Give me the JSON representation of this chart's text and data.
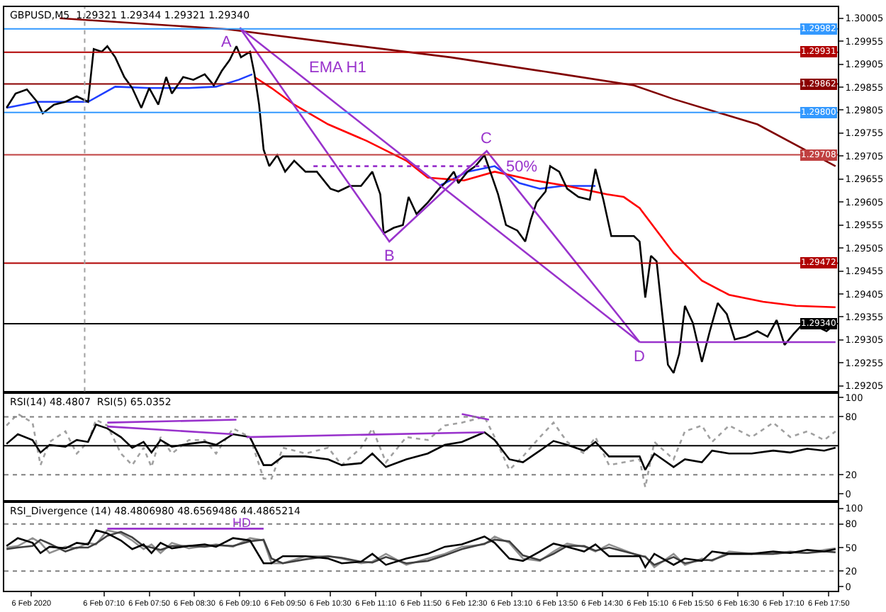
{
  "chart_data": [
    {
      "type": "line",
      "title": "GBPUSD,M5  1.29321 1.29344 1.29321 1.29340",
      "xlim": [
        "2020-02-06T05:42",
        "2020-02-06T17:58"
      ],
      "ylim": [
        1.29193,
        1.30029
      ],
      "tick_labels": "y",
      "marker": "none",
      "yticks": [
        1.30005,
        1.29955,
        1.29905,
        1.29855,
        1.29805,
        1.29755,
        1.29705,
        1.29655,
        1.29605,
        1.29555,
        1.29505,
        1.29455,
        1.29405,
        1.29355,
        1.29305,
        1.29255,
        1.29205
      ],
      "series": [
        {
          "color": "#800000",
          "x": [
            "2020-02-06T06:31",
            "2020-02-06T08:59",
            "2020-02-06T10:37",
            "2020-02-06T12:16",
            "2020-02-06T13:55",
            "2020-02-06T14:58",
            "2020-02-06T15:33",
            "2020-02-06T16:47",
            "2020-02-06T17:56"
          ],
          "values": [
            1.30005,
            1.29981,
            1.2995,
            1.2992,
            1.29883,
            1.29859,
            1.29829,
            1.29774,
            1.29683
          ]
        },
        {
          "color": "#1f3fff",
          "x": [
            "2020-02-06T05:44",
            "2020-02-06T06:11",
            "2020-02-06T06:56",
            "2020-02-06T07:20",
            "2020-02-06T07:50",
            "2020-02-06T08:25",
            "2020-02-06T08:49",
            "2020-02-06T09:09",
            "2020-02-06T09:21",
            "2020-02-06T09:48",
            "2020-02-06T12:06",
            "2020-02-06T12:31",
            "2020-02-06T12:55",
            "2020-02-06T13:17",
            "2020-02-06T13:35",
            "2020-02-06T13:55",
            "2020-02-06T14:24"
          ],
          "values": [
            1.2981,
            1.29823,
            1.29823,
            1.29856,
            1.29853,
            1.29853,
            1.29856,
            1.29871,
            1.29883,
            null,
            1.2964,
            1.29671,
            1.29683,
            1.29646,
            1.29634,
            1.2964,
            1.2964
          ]
        },
        {
          "color": "#ff0000",
          "x": [
            "2020-02-06T09:23",
            "2020-02-06T09:38",
            "2020-02-06T09:58",
            "2020-02-06T10:28",
            "2020-02-06T11:02",
            "2020-02-06T11:37",
            "2020-02-06T11:56",
            "2020-02-06T12:28",
            "2020-02-06T12:55",
            "2020-02-06T13:30",
            "2020-02-06T13:59",
            "2020-02-06T14:34",
            "2020-02-06T14:49",
            "2020-02-06T15:03",
            "2020-02-06T15:33",
            "2020-02-06T15:58",
            "2020-02-06T16:22",
            "2020-02-06T16:52",
            "2020-02-06T17:21",
            "2020-02-06T17:56"
          ],
          "values": [
            1.29877,
            1.29853,
            1.29817,
            1.29774,
            1.29738,
            1.29695,
            1.29658,
            1.29652,
            1.29671,
            1.29652,
            1.2964,
            1.29622,
            1.29616,
            1.29592,
            1.29494,
            1.29434,
            1.29403,
            1.29388,
            1.29379,
            1.29376
          ]
        },
        {
          "color": "#000000",
          "x": [
            "2020-02-06T05:44",
            "2020-02-06T05:52",
            "2020-02-06T06:02",
            "2020-02-06T06:11",
            "2020-02-06T06:16",
            "2020-02-06T06:26",
            "2020-02-06T06:36",
            "2020-02-06T06:46",
            "2020-02-06T06:56",
            "2020-02-06T07:01",
            "2020-02-06T07:08",
            "2020-02-06T07:13",
            "2020-02-06T07:20",
            "2020-02-06T07:28",
            "2020-02-06T07:35",
            "2020-02-06T07:43",
            "2020-02-06T07:50",
            "2020-02-06T07:58",
            "2020-02-06T08:05",
            "2020-02-06T08:10",
            "2020-02-06T08:20",
            "2020-02-06T08:29",
            "2020-02-06T08:39",
            "2020-02-06T08:47",
            "2020-02-06T08:54",
            "2020-02-06T09:01",
            "2020-02-06T09:07",
            "2020-02-06T09:11",
            "2020-02-06T09:19",
            "2020-02-06T09:23",
            "2020-02-06T09:27",
            "2020-02-06T09:31",
            "2020-02-06T09:36",
            "2020-02-06T09:43",
            "2020-02-06T09:50",
            "2020-02-06T09:58",
            "2020-02-06T10:08",
            "2020-02-06T10:18",
            "2020-02-06T10:30",
            "2020-02-06T10:37",
            "2020-02-06T10:47",
            "2020-02-06T10:57",
            "2020-02-06T11:07",
            "2020-02-06T11:14",
            "2020-02-06T11:17",
            "2020-02-06T11:26",
            "2020-02-06T11:34",
            "2020-02-06T11:39",
            "2020-02-06T11:46",
            "2020-02-06T11:56",
            "2020-02-06T12:06",
            "2020-02-06T12:11",
            "2020-02-06T12:19",
            "2020-02-06T12:23",
            "2020-02-06T12:31",
            "2020-02-06T12:38",
            "2020-02-06T12:46",
            "2020-02-06T12:53",
            "2020-02-06T12:58",
            "2020-02-06T13:05",
            "2020-02-06T13:15",
            "2020-02-06T13:22",
            "2020-02-06T13:27",
            "2020-02-06T13:32",
            "2020-02-06T13:40",
            "2020-02-06T13:44",
            "2020-02-06T13:52",
            "2020-02-06T13:59",
            "2020-02-06T14:09",
            "2020-02-06T14:19",
            "2020-02-06T14:24",
            "2020-02-06T14:31",
            "2020-02-06T14:38",
            "2020-02-06T14:49",
            "2020-02-06T14:58",
            "2020-02-06T15:03",
            "2020-02-06T15:08",
            "2020-02-06T15:13",
            "2020-02-06T15:18",
            "2020-02-06T15:23",
            "2020-02-06T15:28",
            "2020-02-06T15:33",
            "2020-02-06T15:38",
            "2020-02-06T15:43",
            "2020-02-06T15:50",
            "2020-02-06T15:58",
            "2020-02-06T16:05",
            "2020-02-06T16:12",
            "2020-02-06T16:20",
            "2020-02-06T16:27",
            "2020-02-06T16:37",
            "2020-02-06T16:47",
            "2020-02-06T16:56",
            "2020-02-06T17:04",
            "2020-02-06T17:11",
            "2020-02-06T17:19",
            "2020-02-06T17:28",
            "2020-02-06T17:38",
            "2020-02-06T17:48",
            "2020-02-06T17:56"
          ],
          "values": [
            1.2981,
            1.29841,
            1.2985,
            1.29823,
            1.29798,
            1.29817,
            1.29823,
            1.29835,
            1.29823,
            1.29938,
            1.29932,
            1.29944,
            1.2992,
            1.29877,
            1.29853,
            1.2981,
            1.29853,
            1.29817,
            1.29877,
            1.29841,
            1.29877,
            1.29871,
            1.29883,
            1.29859,
            1.2989,
            1.29914,
            1.29944,
            1.2992,
            1.29932,
            1.29883,
            1.29817,
            1.29719,
            1.29683,
            1.29707,
            1.29671,
            1.29695,
            1.29671,
            1.29671,
            1.29634,
            1.29628,
            1.2964,
            1.2964,
            1.29671,
            1.29622,
            1.29537,
            1.29549,
            1.29555,
            1.29616,
            1.29579,
            1.29604,
            1.29634,
            1.29646,
            1.29671,
            1.29646,
            1.29671,
            1.29683,
            1.29707,
            1.29658,
            1.29622,
            1.29555,
            1.29543,
            1.29519,
            1.29567,
            1.29604,
            1.29628,
            1.29683,
            1.29671,
            1.29634,
            1.29616,
            1.2961,
            1.29677,
            1.2961,
            1.29531,
            1.29531,
            1.29531,
            1.29519,
            1.29397,
            1.29488,
            1.29476,
            1.29361,
            1.29251,
            1.29233,
            1.29275,
            1.29379,
            1.29342,
            1.29257,
            1.29324,
            1.29385,
            1.29361,
            1.29306,
            1.29312,
            1.29324,
            1.29312,
            1.29348,
            1.29294,
            1.29318,
            1.29342,
            1.29336,
            1.29324,
            1.2934
          ]
        },
        {
          "color": "#9933cc",
          "x": [
            "2020-02-06T09:10",
            "2020-02-06T11:22",
            "2020-02-06T12:48",
            "2020-02-06T15:03"
          ],
          "values": [
            1.29984,
            1.29519,
            1.29716,
            1.293
          ]
        },
        {
          "color": "#9933cc",
          "x": [
            "2020-02-06T09:10",
            "2020-02-06T15:03"
          ],
          "values": [
            1.29984,
            1.293
          ]
        },
        {
          "color": "#9933cc",
          "x": [
            "2020-02-06T15:03",
            "2020-02-06T17:56"
          ],
          "values": [
            1.293,
            1.293
          ]
        },
        {
          "color": "#9933cc",
          "line_style": "dotted",
          "x": [
            "2020-02-06T10:15",
            "2020-02-06T12:48"
          ],
          "values": [
            1.29683,
            1.29683
          ]
        }
      ],
      "ref_lines": [
        {
          "axis": "y",
          "value": 1.29982,
          "label": "1.29982",
          "color": "#3399ff"
        },
        {
          "axis": "y",
          "value": 1.29931,
          "label": "1.29931",
          "color": "#b00000"
        },
        {
          "axis": "y",
          "value": 1.29862,
          "label": "1.29862",
          "color": "#8b0000"
        },
        {
          "axis": "y",
          "value": 1.298,
          "label": "1.29800",
          "color": "#3399ff"
        },
        {
          "axis": "y",
          "value": 1.29708,
          "label": "1.29708",
          "color": "#c04040"
        },
        {
          "axis": "y",
          "value": 1.29472,
          "label": "1.29472",
          "color": "#b00000"
        },
        {
          "axis": "y",
          "value": 1.2934,
          "label": "1.29340",
          "color": "#000000"
        },
        {
          "axis": "x",
          "value": "2020-02-06T06:53",
          "label": null,
          "color": "#a0a0a0",
          "line_style": "dotted"
        }
      ],
      "annotations": [
        {
          "text": "A",
          "x": "2020-02-06T09:10",
          "y": 1.29984
        },
        {
          "text": "B",
          "x": "2020-02-06T11:22",
          "y": 1.29519
        },
        {
          "text": "C",
          "x": "2020-02-06T12:48",
          "y": 1.29716
        },
        {
          "text": "D",
          "x": "2020-02-06T15:03",
          "y": 1.293
        },
        "EMA H1",
        "50%"
      ]
    },
    {
      "type": "line",
      "title": "RSI(14) 48.4807  RSI(5) 65.0352",
      "xlim": [
        "2020-02-06T05:42",
        "2020-02-06T17:58"
      ],
      "ylim": [
        -6,
        104
      ],
      "yticks": [
        100,
        80,
        20,
        0
      ],
      "tick_labels": "y",
      "marker": "none",
      "x": [
        "2020-02-06T05:44",
        "2020-02-06T05:54",
        "2020-02-06T06:07",
        "2020-02-06T06:14",
        "2020-02-06T06:22",
        "2020-02-06T06:36",
        "2020-02-06T06:46",
        "2020-02-06T06:56",
        "2020-02-06T07:03",
        "2020-02-06T07:13",
        "2020-02-06T07:25",
        "2020-02-06T07:35",
        "2020-02-06T07:45",
        "2020-02-06T07:52",
        "2020-02-06T08:00",
        "2020-02-06T08:10",
        "2020-02-06T08:25",
        "2020-02-06T08:39",
        "2020-02-06T08:49",
        "2020-02-06T09:04",
        "2020-02-06T09:19",
        "2020-02-06T09:31",
        "2020-02-06T09:38",
        "2020-02-06T09:48",
        "2020-02-06T10:08",
        "2020-02-06T10:28",
        "2020-02-06T10:40",
        "2020-02-06T10:57",
        "2020-02-06T11:07",
        "2020-02-06T11:19",
        "2020-02-06T11:37",
        "2020-02-06T11:56",
        "2020-02-06T12:11",
        "2020-02-06T12:26",
        "2020-02-06T12:46",
        "2020-02-06T12:55",
        "2020-02-06T13:08",
        "2020-02-06T13:20",
        "2020-02-06T13:35",
        "2020-02-06T13:47",
        "2020-02-06T13:59",
        "2020-02-06T14:14",
        "2020-02-06T14:24",
        "2020-02-06T14:36",
        "2020-02-06T15:03",
        "2020-02-06T15:08",
        "2020-02-06T15:16",
        "2020-02-06T15:33",
        "2020-02-06T15:43",
        "2020-02-06T15:58",
        "2020-02-06T16:07",
        "2020-02-06T16:22",
        "2020-02-06T16:42",
        "2020-02-06T17:01",
        "2020-02-06T17:16",
        "2020-02-06T17:31",
        "2020-02-06T17:46",
        "2020-02-06T17:56"
      ],
      "series": [
        {
          "color": "#a0a0a0",
          "line_style": "dotted",
          "values": [
            71,
            83,
            74,
            30,
            54,
            65,
            42,
            54,
            77,
            71,
            42,
            30,
            48,
            28,
            59,
            42,
            56,
            56,
            42,
            68,
            59,
            16,
            16,
            48,
            42,
            48,
            30,
            48,
            68,
            33,
            59,
            56,
            71,
            74,
            80,
            59,
            25,
            39,
            59,
            74,
            54,
            42,
            59,
            30,
            36,
            7,
            54,
            36,
            65,
            71,
            54,
            71,
            59,
            74,
            59,
            65,
            56,
            65
          ]
        },
        {
          "color": "#000000",
          "values": [
            52,
            62,
            56,
            43,
            51,
            49,
            56,
            54,
            72,
            68,
            59,
            48,
            54,
            43,
            56,
            49,
            52,
            54,
            51,
            62,
            59,
            30,
            30,
            39,
            39,
            36,
            30,
            32,
            42,
            28,
            36,
            42,
            51,
            54,
            64,
            56,
            36,
            33,
            45,
            55,
            51,
            45,
            54,
            39,
            39,
            25,
            42,
            28,
            36,
            33,
            45,
            42,
            42,
            45,
            43,
            47,
            45,
            48
          ]
        },
        {
          "color": "#9933cc",
          "x": [
            "2020-02-06T07:13",
            "2020-02-06T09:07"
          ],
          "values": [
            74,
            77
          ]
        },
        {
          "color": "#9933cc",
          "x": [
            "2020-02-06T07:13",
            "2020-02-06T09:04"
          ],
          "values": [
            70,
            62
          ]
        },
        {
          "color": "#9933cc",
          "x": [
            "2020-02-06T09:16",
            "2020-02-06T12:46"
          ],
          "values": [
            59,
            64
          ]
        },
        {
          "color": "#9933cc",
          "x": [
            "2020-02-06T12:26",
            "2020-02-06T12:50"
          ],
          "values": [
            83,
            77
          ]
        }
      ],
      "ref_lines": [
        {
          "axis": "y",
          "value": 80,
          "label": null,
          "color": "#808080",
          "line_style": "dotted"
        },
        {
          "axis": "y",
          "value": 50,
          "label": null,
          "color": "#000000"
        },
        {
          "axis": "y",
          "value": 20,
          "label": null,
          "color": "#808080",
          "line_style": "dotted"
        }
      ]
    },
    {
      "type": "line",
      "title": "RSI_Divergence (14) 48.4806980 48.6569486 44.4865214",
      "xlim": [
        "2020-02-06T05:42",
        "2020-02-06T17:58"
      ],
      "ylim": [
        -5,
        107
      ],
      "yticks": [
        100,
        80,
        50,
        20,
        0
      ],
      "marker": "none",
      "xticks": [
        {
          "value": "2020-02-06T06:06",
          "label": "6 Feb 2020"
        },
        {
          "value": "2020-02-06T07:10",
          "label": "6 Feb 07:10"
        },
        {
          "value": "2020-02-06T07:50",
          "label": "6 Feb 07:50"
        },
        {
          "value": "2020-02-06T08:30",
          "label": "6 Feb 08:30"
        },
        {
          "value": "2020-02-06T09:10",
          "label": "6 Feb 09:10"
        },
        {
          "value": "2020-02-06T09:50",
          "label": "6 Feb 09:50"
        },
        {
          "value": "2020-02-06T10:30",
          "label": "6 Feb 10:30"
        },
        {
          "value": "2020-02-06T11:10",
          "label": "6 Feb 11:10"
        },
        {
          "value": "2020-02-06T11:50",
          "label": "6 Feb 11:50"
        },
        {
          "value": "2020-02-06T12:30",
          "label": "6 Feb 12:30"
        },
        {
          "value": "2020-02-06T13:10",
          "label": "6 Feb 13:10"
        },
        {
          "value": "2020-02-06T13:50",
          "label": "6 Feb 13:50"
        },
        {
          "value": "2020-02-06T14:30",
          "label": "6 Feb 14:30"
        },
        {
          "value": "2020-02-06T15:10",
          "label": "6 Feb 15:10"
        },
        {
          "value": "2020-02-06T15:50",
          "label": "6 Feb 15:50"
        },
        {
          "value": "2020-02-06T16:30",
          "label": "6 Feb 16:30"
        },
        {
          "value": "2020-02-06T17:10",
          "label": "6 Feb 17:10"
        },
        {
          "value": "2020-02-06T17:50",
          "label": "6 Feb 17:50"
        }
      ],
      "x": [
        "2020-02-06T05:44",
        "2020-02-06T05:54",
        "2020-02-06T06:07",
        "2020-02-06T06:14",
        "2020-02-06T06:22",
        "2020-02-06T06:36",
        "2020-02-06T06:46",
        "2020-02-06T06:56",
        "2020-02-06T07:03",
        "2020-02-06T07:13",
        "2020-02-06T07:25",
        "2020-02-06T07:35",
        "2020-02-06T07:45",
        "2020-02-06T07:52",
        "2020-02-06T08:00",
        "2020-02-06T08:10",
        "2020-02-06T08:25",
        "2020-02-06T08:39",
        "2020-02-06T08:49",
        "2020-02-06T09:04",
        "2020-02-06T09:19",
        "2020-02-06T09:31",
        "2020-02-06T09:38",
        "2020-02-06T09:48",
        "2020-02-06T10:08",
        "2020-02-06T10:28",
        "2020-02-06T10:40",
        "2020-02-06T10:57",
        "2020-02-06T11:07",
        "2020-02-06T11:19",
        "2020-02-06T11:37",
        "2020-02-06T11:56",
        "2020-02-06T12:11",
        "2020-02-06T12:26",
        "2020-02-06T12:46",
        "2020-02-06T12:55",
        "2020-02-06T13:08",
        "2020-02-06T13:20",
        "2020-02-06T13:35",
        "2020-02-06T13:47",
        "2020-02-06T13:59",
        "2020-02-06T14:14",
        "2020-02-06T14:24",
        "2020-02-06T14:36",
        "2020-02-06T15:03",
        "2020-02-06T15:08",
        "2020-02-06T15:16",
        "2020-02-06T15:33",
        "2020-02-06T15:43",
        "2020-02-06T15:58",
        "2020-02-06T16:07",
        "2020-02-06T16:22",
        "2020-02-06T16:42",
        "2020-02-06T17:01",
        "2020-02-06T17:16",
        "2020-02-06T17:31",
        "2020-02-06T17:46",
        "2020-02-06T17:56"
      ],
      "series": [
        {
          "color": "#909090",
          "values": [
            50,
            52,
            62,
            56,
            43,
            51,
            49,
            56,
            54,
            72,
            68,
            59,
            48,
            54,
            43,
            56,
            49,
            52,
            54,
            51,
            62,
            59,
            30,
            30,
            39,
            39,
            36,
            30,
            32,
            42,
            28,
            36,
            42,
            51,
            54,
            64,
            56,
            36,
            33,
            45,
            55,
            51,
            45,
            54,
            39,
            39,
            25,
            42,
            28,
            36,
            33,
            45,
            42,
            42,
            45,
            43,
            47,
            49
          ]
        },
        {
          "color": "#404040",
          "values": [
            48,
            50,
            52,
            60,
            55,
            45,
            50,
            50,
            55,
            65,
            70,
            63,
            52,
            50,
            47,
            52,
            52,
            51,
            53,
            52,
            58,
            60,
            36,
            30,
            35,
            39,
            37,
            32,
            31,
            38,
            30,
            33,
            40,
            48,
            55,
            60,
            58,
            40,
            34,
            42,
            52,
            52,
            46,
            50,
            40,
            38,
            28,
            38,
            30,
            34,
            34,
            42,
            42,
            42,
            44,
            43,
            45,
            44
          ]
        },
        {
          "color": "#000000",
          "values": [
            52,
            62,
            56,
            43,
            51,
            49,
            56,
            54,
            72,
            68,
            59,
            48,
            54,
            43,
            56,
            49,
            52,
            54,
            51,
            62,
            59,
            30,
            30,
            39,
            39,
            36,
            30,
            32,
            42,
            28,
            36,
            42,
            51,
            54,
            64,
            56,
            36,
            33,
            45,
            55,
            51,
            45,
            54,
            39,
            39,
            25,
            42,
            28,
            36,
            33,
            45,
            42,
            42,
            45,
            43,
            47,
            45,
            48
          ]
        },
        {
          "color": "#9933cc",
          "x": [
            "2020-02-06T07:13",
            "2020-02-06T09:31"
          ],
          "values": [
            74,
            74
          ]
        }
      ],
      "ref_lines": [
        {
          "axis": "y",
          "value": 80,
          "label": null,
          "color": "#808080",
          "line_style": "dotted"
        },
        {
          "axis": "y",
          "value": 20,
          "label": null,
          "color": "#808080",
          "line_style": "dotted"
        }
      ],
      "annotations": [
        "HD"
      ]
    }
  ]
}
